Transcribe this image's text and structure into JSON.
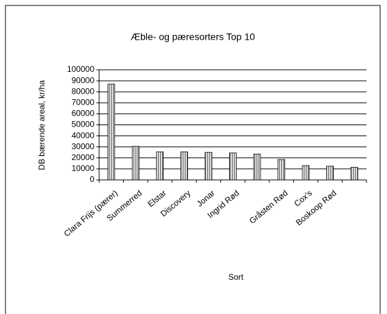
{
  "chart_data": {
    "type": "bar",
    "title": "Æble- og pæresorters Top 10",
    "x_label": "Sort",
    "y_label": "DB bærende areal, kr/ha",
    "categories": [
      "Clara Frijs (pærer)",
      "Summerred",
      "Elstar",
      "Discovery",
      "Jonar",
      "Ingrid Rød",
      null,
      "Gråsten Rød",
      "Cox's",
      "Boskoop Rød",
      null
    ],
    "values": [
      87000,
      30500,
      25500,
      25500,
      25000,
      24500,
      23500,
      18500,
      13000,
      12500,
      11500
    ],
    "color": "#707070",
    "ylim": [
      0,
      100000
    ],
    "yticks": [
      0,
      10000,
      20000,
      30000,
      40000,
      50000,
      60000,
      70000,
      80000,
      90000,
      100000
    ],
    "grid": true
  }
}
